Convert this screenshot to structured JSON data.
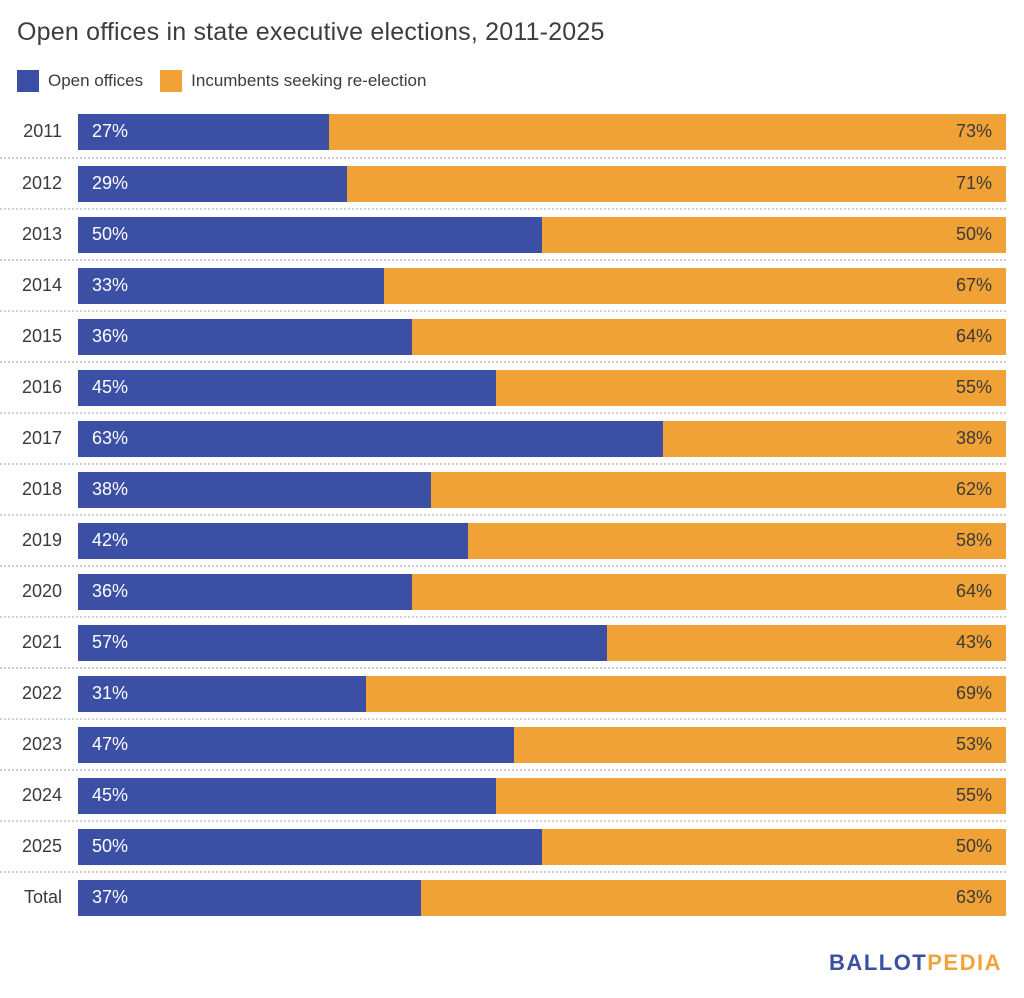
{
  "header": {
    "title": "Open offices in state executive elections, 2011-2025"
  },
  "legend": {
    "items": [
      {
        "label": "Open offices",
        "color": "#3b4fa5"
      },
      {
        "label": "Incumbents seeking re-election",
        "color": "#f0a236"
      }
    ]
  },
  "chart_data": {
    "type": "bar",
    "variant": "horizontal-stacked-100pct",
    "title": "Open offices in state executive elections, 2011-2025",
    "categories": [
      "2011",
      "2012",
      "2013",
      "2014",
      "2015",
      "2016",
      "2017",
      "2018",
      "2019",
      "2020",
      "2021",
      "2022",
      "2023",
      "2024",
      "2025",
      "Total"
    ],
    "series": [
      {
        "name": "Open offices",
        "color": "#3b4fa5",
        "values": [
          27,
          29,
          50,
          33,
          36,
          45,
          63,
          38,
          42,
          36,
          57,
          31,
          47,
          45,
          50,
          37
        ]
      },
      {
        "name": "Incumbents seeking re-election",
        "color": "#f0a236",
        "values": [
          73,
          71,
          50,
          67,
          64,
          55,
          38,
          62,
          58,
          64,
          43,
          69,
          53,
          55,
          50,
          63
        ]
      }
    ],
    "value_suffix": "%",
    "xlim": [
      0,
      100
    ],
    "grid": "dotted-row-separators",
    "legend_position": "top-left"
  },
  "footer": {
    "logo_part1": "BALLOT",
    "logo_part2": "PEDIA"
  },
  "colors": {
    "open": "#3b4fa5",
    "incumbent": "#f0a236",
    "text_dark": "#3c3c3c",
    "bar_label_light": "#ffffff",
    "separator": "#cfcfcf",
    "logo_blue": "#3b4fa5",
    "logo_orange": "#f2a33c"
  }
}
